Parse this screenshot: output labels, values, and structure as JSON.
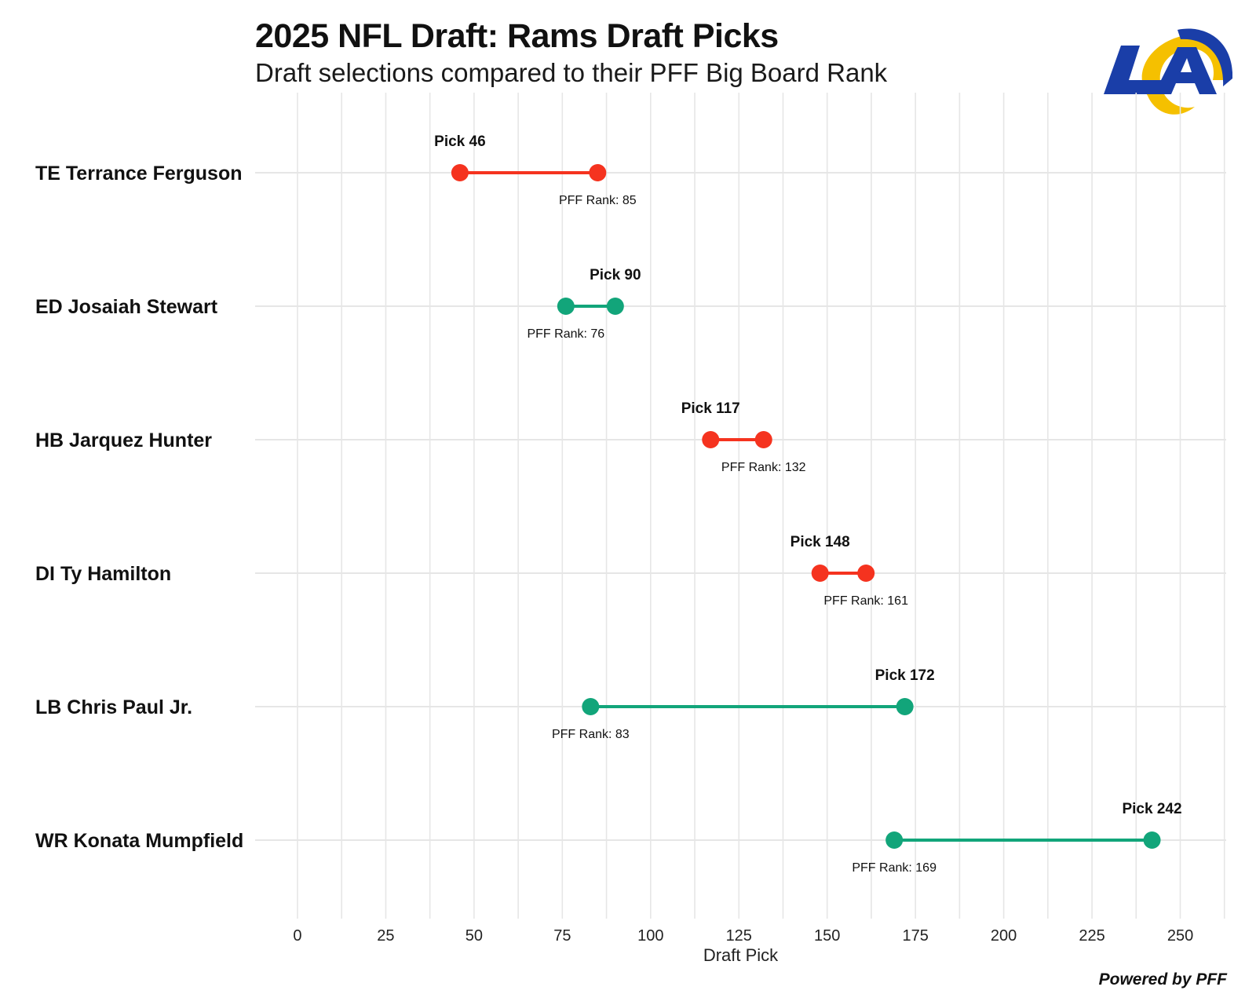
{
  "header": {
    "title": "2025 NFL Draft: Rams Draft Picks",
    "subtitle": "Draft selections compared to their PFF Big Board Rank",
    "logo_icon": "la-rams-logo-icon"
  },
  "footer": {
    "credit": "Powered by PFF"
  },
  "colors": {
    "reach": "#f5331f",
    "value": "#12a57a",
    "grid": "#e6e6e6",
    "logo_blue": "#1a3ea8",
    "logo_gold": "#f5c000"
  },
  "chart_data": {
    "type": "dumbbell",
    "title": "2025 NFL Draft: Rams Draft Picks",
    "subtitle": "Draft selections compared to their PFF Big Board Rank",
    "xlabel": "Draft Pick",
    "ylabel": "",
    "xlim": [
      -12,
      263
    ],
    "xticks": [
      0,
      25,
      50,
      75,
      100,
      125,
      150,
      175,
      200,
      225,
      250
    ],
    "grid": true,
    "players": [
      {
        "name": "TE Terrance Ferguson",
        "pick": 46,
        "pff_rank": 85,
        "pick_label": "Pick 46",
        "rank_label": "PFF Rank: 85"
      },
      {
        "name": "ED Josaiah Stewart",
        "pick": 90,
        "pff_rank": 76,
        "pick_label": "Pick 90",
        "rank_label": "PFF Rank: 76"
      },
      {
        "name": "HB Jarquez Hunter",
        "pick": 117,
        "pff_rank": 132,
        "pick_label": "Pick 117",
        "rank_label": "PFF Rank: 132"
      },
      {
        "name": "DI Ty Hamilton",
        "pick": 148,
        "pff_rank": 161,
        "pick_label": "Pick 148",
        "rank_label": "PFF Rank: 161"
      },
      {
        "name": "LB Chris Paul Jr.",
        "pick": 172,
        "pff_rank": 83,
        "pick_label": "Pick 172",
        "rank_label": "PFF Rank: 83"
      },
      {
        "name": "WR Konata Mumpfield",
        "pick": 242,
        "pff_rank": 169,
        "pick_label": "Pick 242",
        "rank_label": "PFF Rank: 169"
      }
    ]
  }
}
